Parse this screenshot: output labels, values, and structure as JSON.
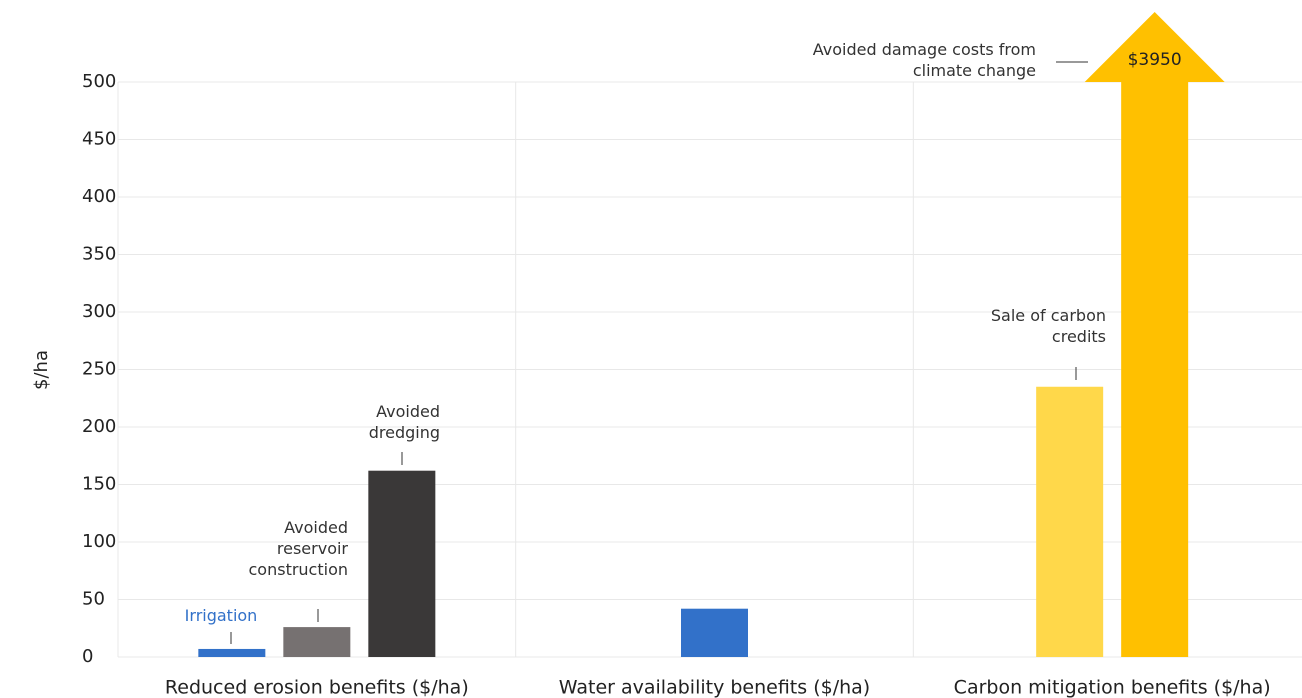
{
  "chart_data": {
    "type": "bar",
    "ylabel": "$/ha",
    "categories": [
      "Reduced erosion benefits ($/ha)",
      "Water availability benefits ($/ha)",
      "Carbon mitigation benefits ($/ha)"
    ],
    "series": [
      {
        "name": "Irrigation",
        "color": "#3271c9",
        "values": [
          7,
          42,
          null
        ]
      },
      {
        "name": "Avoided reservoir construction",
        "color": "#767171",
        "values": [
          26,
          null,
          null
        ]
      },
      {
        "name": "Avoided dredging",
        "color": "#3a3838",
        "values": [
          162,
          null,
          null
        ]
      },
      {
        "name": "Sale of carbon credits",
        "color": "#ffd84a",
        "values": [
          null,
          null,
          235
        ]
      },
      {
        "name": "Avoided damage costs from climate change",
        "color": "#ffc000",
        "values": [
          null,
          null,
          3950
        ],
        "value_labels": [
          null,
          null,
          "$3950"
        ]
      }
    ],
    "ylim": [
      0,
      500
    ],
    "yticks": [
      0,
      50,
      100,
      150,
      200,
      250,
      300,
      350,
      400,
      450,
      500
    ],
    "grid": true
  }
}
